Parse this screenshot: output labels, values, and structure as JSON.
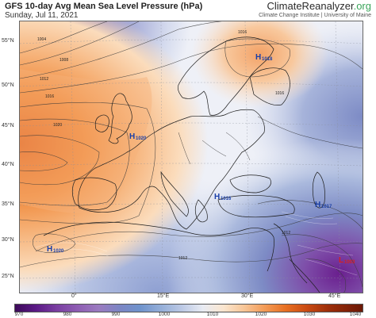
{
  "header": {
    "title": "GFS 10-day Avg Mean Sea Level Pressure (hPa)",
    "subtitle": "Sunday, Jul 11, 2021",
    "brand_main": "ClimateReanalyzer",
    "brand_tld": ".org",
    "brand_sub": "Climate Change Institute | University of Maine"
  },
  "map": {
    "lat_labels": [
      "55°N",
      "50°N",
      "45°N",
      "40°N",
      "35°N",
      "30°N",
      "25°N"
    ],
    "lon_labels": [
      "0°",
      "15°E",
      "30°E",
      "45°E"
    ],
    "pressure_centers": [
      {
        "letter": "H",
        "value": "1018"
      },
      {
        "letter": "H",
        "value": "1020"
      },
      {
        "letter": "H",
        "value": "1016"
      },
      {
        "letter": "H",
        "value": "1017"
      },
      {
        "letter": "H",
        "value": "1020"
      },
      {
        "letter": "L",
        "value": "1003"
      }
    ],
    "contour_labels": [
      "1004",
      "1008",
      "1012",
      "1016",
      "1020",
      "1016",
      "1016",
      "1012",
      "1012"
    ]
  },
  "colorbar": {
    "ticks": [
      "970",
      "980",
      "990",
      "1000",
      "1010",
      "1020",
      "1030",
      "1040"
    ],
    "colors": {
      "low": "#3d0a59",
      "mid": "#ffffff",
      "high": "#c94a12"
    }
  }
}
